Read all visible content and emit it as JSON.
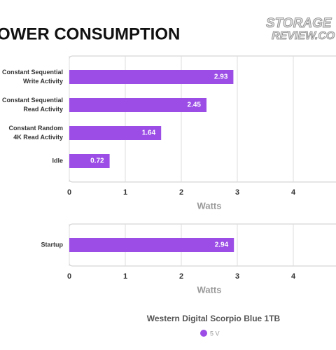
{
  "title": "OWER CONSUMPTION",
  "logo": [
    "STORAGE",
    "REVIEW.CO"
  ],
  "chart_data": [
    {
      "type": "bar",
      "orientation": "horizontal",
      "categories": [
        "Constant Sequential\nWrite Activity",
        "Constant Sequential\nRead Activity",
        "Constant Random\n4K Read Activity",
        "Idle"
      ],
      "series": [
        {
          "color": "#9b4de6",
          "values": [
            2.93,
            2.45,
            1.64,
            0.72
          ]
        }
      ],
      "xlabel": "Watts",
      "xlim": [
        0,
        5
      ],
      "xticks": [
        0,
        1,
        2,
        3,
        4
      ],
      "grid": true
    },
    {
      "type": "bar",
      "orientation": "horizontal",
      "categories": [
        "Startup"
      ],
      "series": [
        {
          "name": "5 V",
          "color": "#9b4de6",
          "values": [
            2.94
          ]
        }
      ],
      "xlabel": "Watts",
      "xlim": [
        0,
        5
      ],
      "xticks": [
        0,
        1,
        2,
        3,
        4
      ],
      "grid": true,
      "legend_title": "Western Digital Scorpio Blue 1TB"
    }
  ]
}
